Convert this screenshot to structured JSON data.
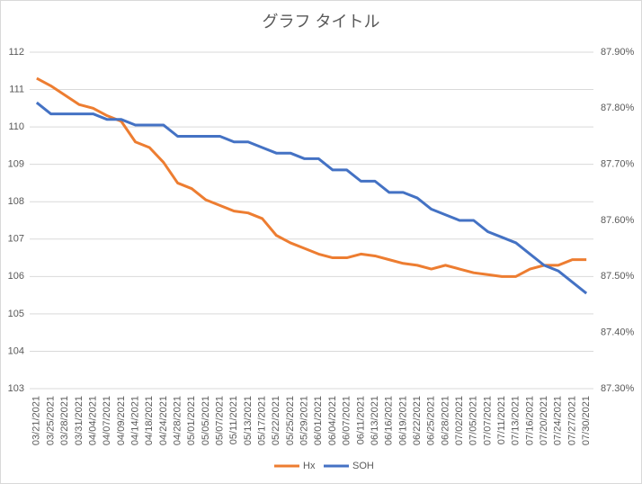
{
  "chart_data": {
    "type": "line",
    "title": "グラフ タイトル",
    "categories": [
      "03/21/2021",
      "03/25/2021",
      "03/28/2021",
      "03/31/2021",
      "04/04/2021",
      "04/07/2021",
      "04/09/2021",
      "04/14/2021",
      "04/18/2021",
      "04/24/2021",
      "04/28/2021",
      "05/01/2021",
      "05/05/2021",
      "05/07/2021",
      "05/11/2021",
      "05/13/2021",
      "05/17/2021",
      "05/22/2021",
      "05/25/2021",
      "05/29/2021",
      "06/01/2021",
      "06/04/2021",
      "06/07/2021",
      "06/11/2021",
      "06/13/2021",
      "06/16/2021",
      "06/19/2021",
      "06/22/2021",
      "06/25/2021",
      "06/28/2021",
      "07/02/2021",
      "07/05/2021",
      "07/07/2021",
      "07/11/2021",
      "07/13/2021",
      "07/16/2021",
      "07/20/2021",
      "07/24/2021",
      "07/27/2021",
      "07/30/2021"
    ],
    "series": [
      {
        "name": "Hx",
        "color": "#ed7d31",
        "values": [
          111.3,
          111.1,
          110.85,
          110.6,
          110.5,
          110.3,
          110.15,
          109.6,
          109.45,
          109.05,
          108.5,
          108.35,
          108.05,
          107.9,
          107.75,
          107.7,
          107.55,
          107.1,
          106.9,
          106.75,
          106.6,
          106.5,
          106.5,
          106.6,
          106.55,
          106.45,
          106.35,
          106.3,
          106.2,
          106.3,
          106.2,
          106.1,
          106.05,
          106.0,
          106.0,
          106.2,
          106.3,
          106.3,
          106.45,
          106.45
        ]
      },
      {
        "name": "SOH",
        "color": "#4472c4",
        "axis": "y2",
        "values": [
          87.81,
          87.79,
          87.79,
          87.79,
          87.79,
          87.78,
          87.78,
          87.77,
          87.77,
          87.77,
          87.75,
          87.75,
          87.75,
          87.75,
          87.74,
          87.74,
          87.73,
          87.72,
          87.72,
          87.71,
          87.71,
          87.69,
          87.69,
          87.67,
          87.67,
          87.65,
          87.65,
          87.64,
          87.62,
          87.61,
          87.6,
          87.6,
          87.58,
          87.57,
          87.56,
          87.54,
          87.52,
          87.51,
          87.49,
          87.47
        ]
      }
    ],
    "ylim": [
      103,
      112
    ],
    "yticks": [
      103,
      104,
      105,
      106,
      107,
      108,
      109,
      110,
      111,
      112
    ],
    "y2lim": [
      87.3,
      87.9
    ],
    "y2ticks": [
      {
        "value": 87.3,
        "label": "87.30%"
      },
      {
        "value": 87.4,
        "label": "87.40%"
      },
      {
        "value": 87.5,
        "label": "87.50%"
      },
      {
        "value": 87.6,
        "label": "87.60%"
      },
      {
        "value": 87.7,
        "label": "87.70%"
      },
      {
        "value": 87.8,
        "label": "87.80%"
      },
      {
        "value": 87.9,
        "label": "87.90%"
      }
    ],
    "grid": true,
    "legend": "bottom"
  }
}
